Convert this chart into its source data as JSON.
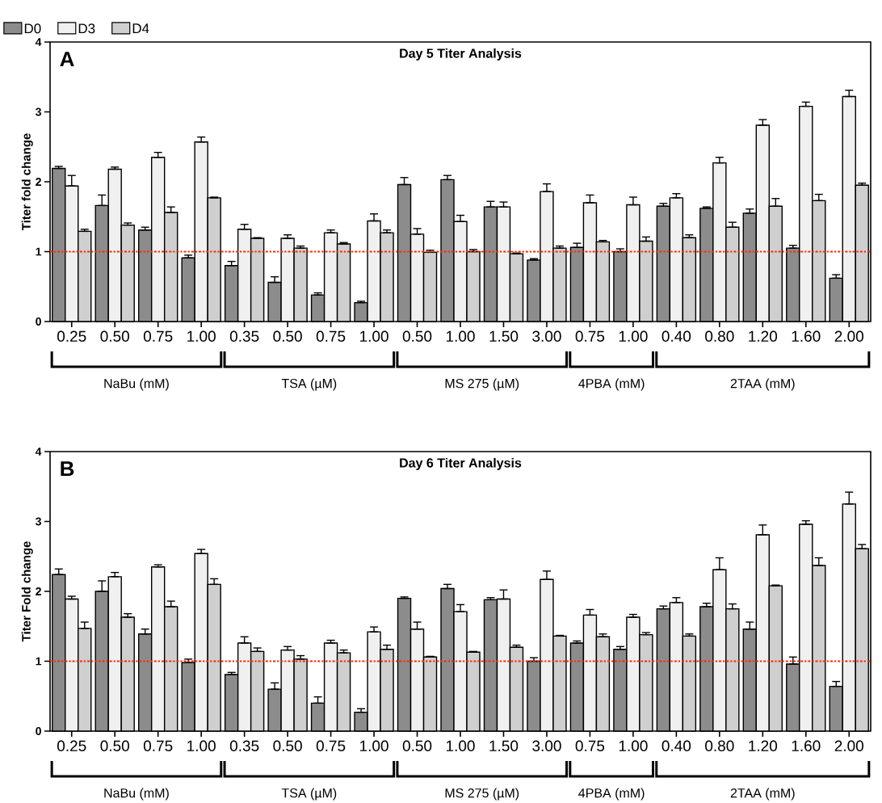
{
  "chart_data": [
    {
      "type": "bar",
      "title": "Day 5 Titer Analysis",
      "ylabel": "Titer fold change",
      "categories": [
        "0.25",
        "0.50",
        "0.75",
        "1.00",
        "0.35",
        "0.50",
        "0.75",
        "1.00",
        "0.50",
        "1.00",
        "1.50",
        "3.00",
        "0.75",
        "1.00",
        "0.40",
        "0.80",
        "1.20",
        "1.60",
        "2.00"
      ],
      "ylim": [
        0,
        4
      ],
      "yticks": [
        0,
        1,
        2,
        3,
        4
      ],
      "grid": false,
      "legend": "top left",
      "annotations": [
        "A",
        "NaBu (mM)",
        "TSA (µM)",
        "MS 275 (µM)",
        "4PBA (mM)",
        "2TAA (mM)"
      ],
      "ref_lines": [
        {
          "axis": "y",
          "value": 1,
          "color": "#ff2a00",
          "line_style": "dashdot"
        }
      ],
      "series": [
        {
          "name": "D0",
          "color": "#8c8c8c",
          "values": [
            2.19,
            1.66,
            1.31,
            0.91,
            0.8,
            0.56,
            0.38,
            0.27,
            1.96,
            2.03,
            1.64,
            0.88,
            1.06,
            1.0,
            1.65,
            1.62,
            1.55,
            1.05,
            0.62
          ],
          "errors": [
            [
              2.19,
              2.22
            ],
            [
              1.66,
              1.81
            ],
            [
              1.31,
              1.35
            ],
            [
              0.91,
              0.95
            ],
            [
              0.8,
              0.86
            ],
            [
              0.56,
              0.64
            ],
            [
              0.38,
              0.41
            ],
            [
              0.27,
              0.29
            ],
            [
              1.96,
              2.06
            ],
            [
              2.03,
              2.09
            ],
            [
              1.64,
              1.72
            ],
            [
              0.88,
              0.9
            ],
            [
              1.06,
              1.12
            ],
            [
              1.0,
              1.04
            ],
            [
              1.65,
              1.69
            ],
            [
              1.62,
              1.64
            ],
            [
              1.55,
              1.61
            ],
            [
              1.05,
              1.09
            ],
            [
              0.62,
              0.67
            ]
          ]
        },
        {
          "name": "D3",
          "color": "#f0f0f0",
          "values": [
            1.94,
            2.18,
            2.35,
            2.57,
            1.32,
            1.19,
            1.27,
            1.44,
            1.25,
            1.43,
            1.64,
            1.86,
            1.7,
            1.67,
            1.77,
            2.27,
            2.81,
            3.08,
            3.22
          ],
          "errors": [
            [
              1.94,
              2.09
            ],
            [
              2.18,
              2.21
            ],
            [
              2.35,
              2.42
            ],
            [
              2.57,
              2.64
            ],
            [
              1.32,
              1.39
            ],
            [
              1.19,
              1.24
            ],
            [
              1.27,
              1.31
            ],
            [
              1.44,
              1.54
            ],
            [
              1.25,
              1.33
            ],
            [
              1.43,
              1.52
            ],
            [
              1.64,
              1.71
            ],
            [
              1.86,
              1.97
            ],
            [
              1.7,
              1.81
            ],
            [
              1.67,
              1.78
            ],
            [
              1.77,
              1.83
            ],
            [
              2.27,
              2.35
            ],
            [
              2.81,
              2.89
            ],
            [
              3.08,
              3.14
            ],
            [
              3.22,
              3.31
            ]
          ]
        },
        {
          "name": "D4",
          "color": "#cfcfcf",
          "values": [
            1.29,
            1.38,
            1.56,
            1.77,
            1.19,
            1.05,
            1.11,
            1.27,
            0.99,
            1.0,
            0.97,
            1.05,
            1.14,
            1.15,
            1.2,
            1.35,
            1.65,
            1.73,
            1.95
          ],
          "errors": [
            [
              1.29,
              1.32
            ],
            [
              1.38,
              1.41
            ],
            [
              1.56,
              1.64
            ],
            [
              1.77,
              1.78
            ],
            [
              1.19,
              1.2
            ],
            [
              1.05,
              1.08
            ],
            [
              1.11,
              1.13
            ],
            [
              1.27,
              1.31
            ],
            [
              0.99,
              1.02
            ],
            [
              1.0,
              1.03
            ],
            [
              0.97,
              0.98
            ],
            [
              1.05,
              1.08
            ],
            [
              1.14,
              1.16
            ],
            [
              1.15,
              1.21
            ],
            [
              1.2,
              1.24
            ],
            [
              1.35,
              1.42
            ],
            [
              1.65,
              1.76
            ],
            [
              1.73,
              1.82
            ],
            [
              1.95,
              1.98
            ]
          ]
        }
      ]
    },
    {
      "type": "bar",
      "title": "Day 6 Titer Analysis",
      "ylabel": "Titer Fold change",
      "categories": [
        "0.25",
        "0.50",
        "0.75",
        "1.00",
        "0.35",
        "0.50",
        "0.75",
        "1.00",
        "0.50",
        "1.00",
        "1.50",
        "3.00",
        "0.75",
        "1.00",
        "0.40",
        "0.80",
        "1.20",
        "1.60",
        "2.00"
      ],
      "ylim": [
        0,
        4
      ],
      "yticks": [
        0,
        1,
        2,
        3,
        4
      ],
      "grid": false,
      "annotations": [
        "B",
        "NaBu (mM)",
        "TSA (µM)",
        "MS 275 (µM)",
        "4PBA (mM)",
        "2TAA (mM)"
      ],
      "ref_lines": [
        {
          "axis": "y",
          "value": 1,
          "color": "#ff2a00",
          "line_style": "dashdot"
        }
      ],
      "series": [
        {
          "color": "#8c8c8c",
          "values": [
            2.24,
            2.0,
            1.39,
            0.98,
            0.81,
            0.6,
            0.4,
            0.27,
            1.9,
            2.04,
            1.88,
            1.0,
            1.26,
            1.17,
            1.75,
            1.78,
            1.46,
            0.96,
            0.64
          ],
          "errors": [
            [
              2.24,
              2.32
            ],
            [
              2.0,
              2.15
            ],
            [
              1.39,
              1.46
            ],
            [
              0.98,
              1.03
            ],
            [
              0.81,
              0.84
            ],
            [
              0.6,
              0.69
            ],
            [
              0.4,
              0.49
            ],
            [
              0.27,
              0.32
            ],
            [
              1.9,
              1.92
            ],
            [
              2.04,
              2.1
            ],
            [
              1.88,
              1.91
            ],
            [
              1.0,
              1.05
            ],
            [
              1.26,
              1.29
            ],
            [
              1.17,
              1.21
            ],
            [
              1.75,
              1.79
            ],
            [
              1.78,
              1.83
            ],
            [
              1.46,
              1.56
            ],
            [
              0.96,
              1.06
            ],
            [
              0.64,
              0.71
            ]
          ]
        },
        {
          "color": "#f0f0f0",
          "values": [
            1.89,
            2.21,
            2.35,
            2.54,
            1.26,
            1.16,
            1.26,
            1.42,
            1.46,
            1.71,
            1.89,
            2.17,
            1.66,
            1.63,
            1.84,
            2.31,
            2.81,
            2.96,
            3.25
          ],
          "errors": [
            [
              1.89,
              1.93
            ],
            [
              2.21,
              2.27
            ],
            [
              2.35,
              2.38
            ],
            [
              2.54,
              2.6
            ],
            [
              1.26,
              1.35
            ],
            [
              1.16,
              1.21
            ],
            [
              1.26,
              1.3
            ],
            [
              1.42,
              1.49
            ],
            [
              1.46,
              1.56
            ],
            [
              1.71,
              1.81
            ],
            [
              1.89,
              2.02
            ],
            [
              2.17,
              2.29
            ],
            [
              1.66,
              1.74
            ],
            [
              1.63,
              1.67
            ],
            [
              1.84,
              1.91
            ],
            [
              2.31,
              2.48
            ],
            [
              2.81,
              2.95
            ],
            [
              2.96,
              3.01
            ],
            [
              3.25,
              3.42
            ]
          ]
        },
        {
          "color": "#cfcfcf",
          "values": [
            1.47,
            1.63,
            1.78,
            2.1,
            1.14,
            1.03,
            1.12,
            1.17,
            1.06,
            1.13,
            1.2,
            1.36,
            1.35,
            1.38,
            1.36,
            1.75,
            2.08,
            2.37,
            2.61
          ],
          "errors": [
            [
              1.47,
              1.56
            ],
            [
              1.63,
              1.68
            ],
            [
              1.78,
              1.86
            ],
            [
              2.1,
              2.18
            ],
            [
              1.14,
              1.19
            ],
            [
              1.03,
              1.08
            ],
            [
              1.12,
              1.16
            ],
            [
              1.17,
              1.23
            ],
            [
              1.06,
              1.07
            ],
            [
              1.13,
              1.14
            ],
            [
              1.2,
              1.23
            ],
            [
              1.36,
              1.37
            ],
            [
              1.35,
              1.39
            ],
            [
              1.38,
              1.41
            ],
            [
              1.36,
              1.39
            ],
            [
              1.75,
              1.82
            ],
            [
              2.08,
              2.09
            ],
            [
              2.37,
              2.48
            ],
            [
              2.61,
              2.67
            ]
          ]
        }
      ]
    }
  ]
}
